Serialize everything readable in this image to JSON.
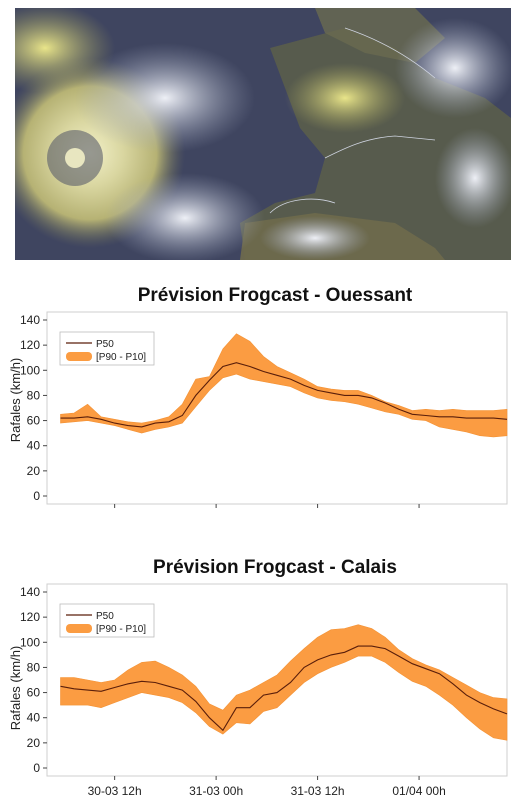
{
  "colors": {
    "band": "#fb9c42",
    "band_stroke": "#f39235",
    "line": "#5a1e0a"
  },
  "chart_data": [
    {
      "type": "area",
      "title": "Prévision Frogcast - Ouessant",
      "ylabel": "Rafales (km/h)",
      "xlabel": "",
      "ylim": [
        0,
        140
      ],
      "yticks": [
        0,
        20,
        40,
        60,
        80,
        100,
        120,
        140
      ],
      "xlim": [
        0,
        68
      ],
      "xticks": [
        {
          "t": 10,
          "label": "30-03 12h"
        },
        {
          "t": 25,
          "label": "31-03 00h"
        },
        {
          "t": 40,
          "label": "31-03 12h"
        },
        {
          "t": 55,
          "label": "01/04 00h"
        }
      ],
      "legend": {
        "position": "top-left",
        "entries": [
          "P50",
          "[P90 - P10]"
        ]
      },
      "grid": false,
      "x": [
        2,
        4,
        6,
        8,
        10,
        12,
        14,
        16,
        18,
        20,
        22,
        24,
        26,
        28,
        30,
        32,
        34,
        36,
        38,
        40,
        42,
        44,
        46,
        48,
        50,
        52,
        54,
        56,
        58,
        60,
        62,
        64,
        66,
        68
      ],
      "series": [
        {
          "name": "P50",
          "values": [
            62,
            62,
            63,
            61,
            58,
            56,
            55,
            58,
            59,
            64,
            80,
            92,
            103,
            106,
            103,
            99,
            96,
            93,
            88,
            84,
            82,
            80,
            80,
            78,
            74,
            69,
            65,
            64,
            63,
            63,
            62,
            62,
            62,
            61
          ]
        },
        {
          "name": "P90",
          "values": [
            65,
            66,
            73,
            63,
            61,
            59,
            58,
            60,
            63,
            73,
            93,
            95,
            117,
            129,
            123,
            111,
            103,
            98,
            93,
            87,
            85,
            84,
            84,
            80,
            75,
            72,
            68,
            69,
            68,
            69,
            68,
            68,
            68,
            69
          ]
        },
        {
          "name": "P10",
          "values": [
            58,
            59,
            60,
            58,
            56,
            53,
            50,
            53,
            55,
            58,
            71,
            84,
            94,
            97,
            93,
            91,
            89,
            87,
            82,
            78,
            76,
            75,
            73,
            70,
            67,
            65,
            61,
            60,
            55,
            53,
            51,
            48,
            47,
            48
          ]
        }
      ]
    },
    {
      "type": "area",
      "title": "Prévision Frogcast - Calais",
      "ylabel": "Rafales (km/h)",
      "xlabel": "",
      "ylim": [
        0,
        140
      ],
      "yticks": [
        0,
        20,
        40,
        60,
        80,
        100,
        120,
        140
      ],
      "xlim": [
        0,
        68
      ],
      "xticks": [
        {
          "t": 10,
          "label": "30-03 12h"
        },
        {
          "t": 25,
          "label": "31-03 00h"
        },
        {
          "t": 40,
          "label": "31-03 12h"
        },
        {
          "t": 55,
          "label": "01/04 00h"
        }
      ],
      "legend": {
        "position": "top-left",
        "entries": [
          "P50",
          "[P90 - P10]"
        ]
      },
      "grid": false,
      "x": [
        2,
        4,
        6,
        8,
        10,
        12,
        14,
        16,
        18,
        20,
        22,
        24,
        26,
        28,
        30,
        32,
        34,
        36,
        38,
        40,
        42,
        44,
        46,
        48,
        50,
        52,
        54,
        56,
        58,
        60,
        62,
        64,
        66,
        68
      ],
      "series": [
        {
          "name": "P50",
          "values": [
            65,
            63,
            62,
            61,
            64,
            67,
            69,
            68,
            65,
            62,
            53,
            40,
            30,
            48,
            48,
            58,
            60,
            68,
            80,
            86,
            90,
            92,
            97,
            97,
            95,
            89,
            83,
            79,
            75,
            67,
            58,
            52,
            47,
            43
          ]
        },
        {
          "name": "P90",
          "values": [
            72,
            72,
            70,
            68,
            70,
            78,
            84,
            85,
            80,
            74,
            65,
            51,
            46,
            58,
            62,
            68,
            74,
            85,
            95,
            104,
            110,
            111,
            114,
            111,
            104,
            94,
            87,
            82,
            78,
            72,
            66,
            60,
            56,
            55
          ]
        },
        {
          "name": "P10",
          "values": [
            50,
            50,
            50,
            48,
            52,
            56,
            60,
            58,
            56,
            52,
            44,
            33,
            27,
            36,
            35,
            45,
            48,
            58,
            68,
            75,
            80,
            84,
            89,
            89,
            84,
            76,
            69,
            65,
            58,
            50,
            40,
            31,
            24,
            22
          ]
        }
      ]
    }
  ]
}
